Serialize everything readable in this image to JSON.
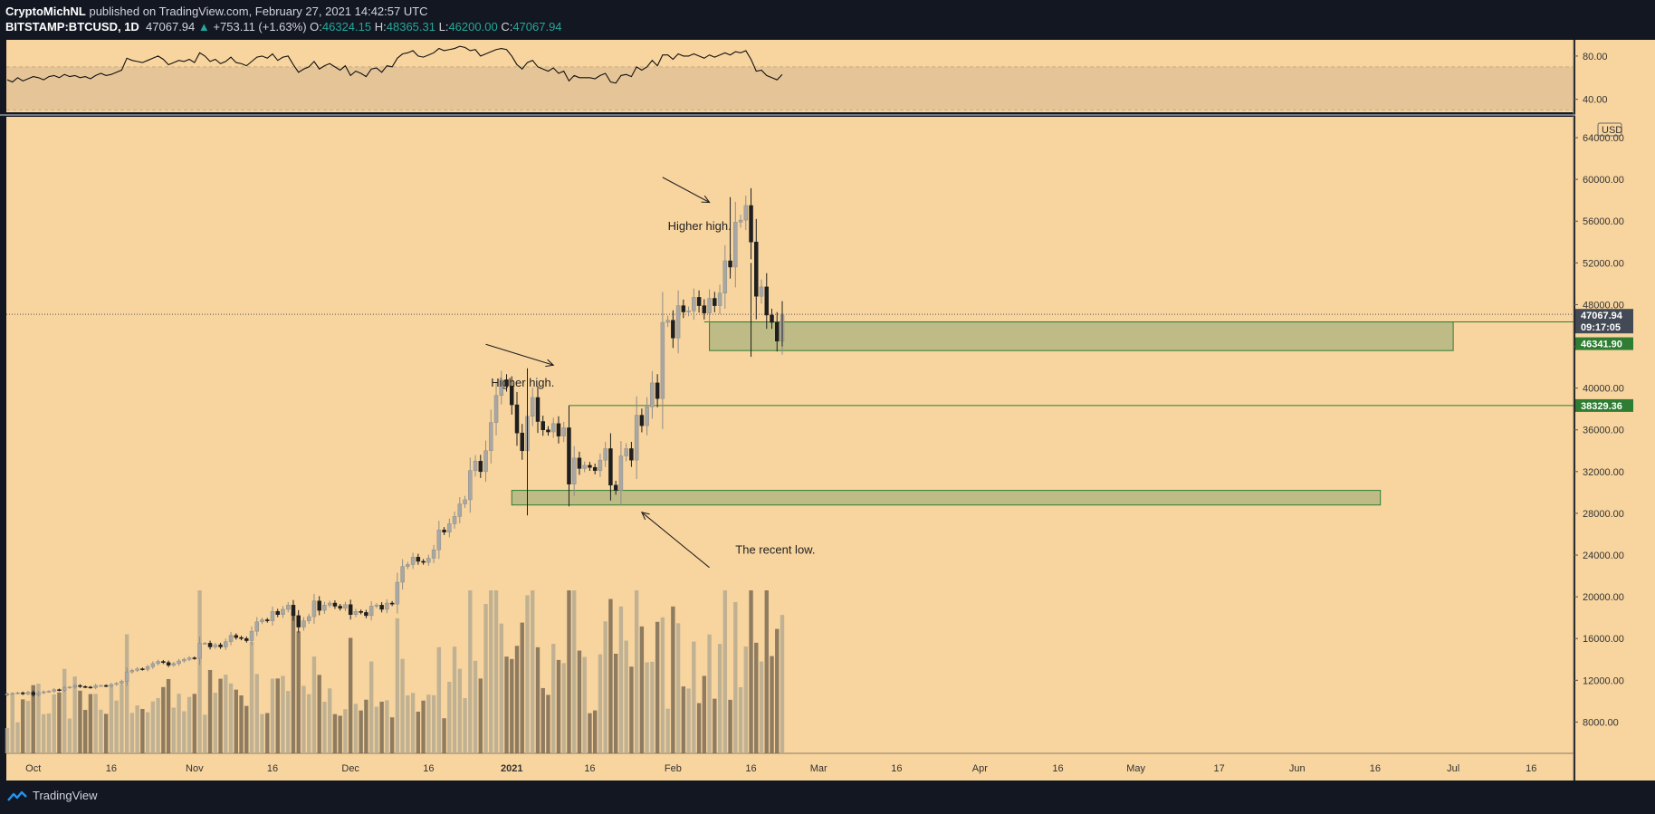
{
  "header": {
    "publisher": "CryptoMichNL",
    "published_text": "published on TradingView.com, February 27, 2021 14:42:57 UTC",
    "symbol": "BITSTAMP:BTCUSD, 1D",
    "last": "47067.94",
    "change": "+753.11 (+1.63%)",
    "o_label": "O:",
    "o_value": "46324.15",
    "h_label": "H:",
    "h_value": "48365.31",
    "l_label": "L:",
    "l_value": "46200.00",
    "c_label": "C:",
    "c_value": "47067.94"
  },
  "footer": {
    "brand": "TradingView"
  },
  "colors": {
    "background": "#131722",
    "pane": "#f8d59f",
    "rsi_band": "#e5c597",
    "candle_up": "#a8a7a3",
    "candle_down": "#1f1f1f",
    "zone_fill": "#bfbb86",
    "zone_border": "#2e7d32",
    "price_label_green": "#2e7d32",
    "price_label_dark": "#444a55"
  },
  "chart_data": {
    "type": "candlestick",
    "symbol": "BITSTAMP:BTCUSD",
    "interval": "1D",
    "currency_label": "USD",
    "y_ticks": [
      "8000.00",
      "12000.00",
      "16000.00",
      "20000.00",
      "24000.00",
      "28000.00",
      "32000.00",
      "36000.00",
      "40000.00",
      "44000.00",
      "48000.00",
      "52000.00",
      "56000.00",
      "60000.00",
      "64000.00"
    ],
    "y_range": [
      5000,
      66000
    ],
    "x_ticks": [
      {
        "label": "Oct",
        "date": "2020-10-01"
      },
      {
        "label": "16",
        "date": "2020-10-16"
      },
      {
        "label": "Nov",
        "date": "2020-11-01"
      },
      {
        "label": "16",
        "date": "2020-11-16"
      },
      {
        "label": "Dec",
        "date": "2020-12-01"
      },
      {
        "label": "16",
        "date": "2020-12-16"
      },
      {
        "label": "2021",
        "date": "2021-01-01"
      },
      {
        "label": "16",
        "date": "2021-01-16"
      },
      {
        "label": "Feb",
        "date": "2021-02-01"
      },
      {
        "label": "16",
        "date": "2021-02-16"
      },
      {
        "label": "Mar",
        "date": "2021-03-01"
      },
      {
        "label": "16",
        "date": "2021-03-16"
      },
      {
        "label": "Apr",
        "date": "2021-04-01"
      },
      {
        "label": "16",
        "date": "2021-04-16"
      },
      {
        "label": "May",
        "date": "2021-05-01"
      },
      {
        "label": "17",
        "date": "2021-05-17"
      },
      {
        "label": "Jun",
        "date": "2021-06-01"
      },
      {
        "label": "16",
        "date": "2021-06-16"
      },
      {
        "label": "Jul",
        "date": "2021-07-01"
      },
      {
        "label": "16",
        "date": "2021-07-16"
      }
    ],
    "x_start": "2020-09-26",
    "closes": [
      10700,
      10750,
      10800,
      10700,
      10850,
      10600,
      10800,
      10900,
      10950,
      11100,
      11050,
      11300,
      11350,
      11500,
      11400,
      11350,
      11300,
      11500,
      11500,
      11450,
      11600,
      11700,
      11900,
      12800,
      12950,
      13100,
      13050,
      13300,
      13600,
      13800,
      13700,
      13450,
      13600,
      13850,
      14000,
      14150,
      14100,
      15550,
      15550,
      15200,
      15400,
      15200,
      15700,
      16300,
      16100,
      16000,
      15800,
      16700,
      17600,
      17800,
      17700,
      18600,
      18300,
      18800,
      19200,
      18200,
      17100,
      17700,
      18100,
      19600,
      18700,
      19200,
      19400,
      19100,
      18900,
      19250,
      18300,
      18600,
      18500,
      18200,
      19100,
      19200,
      18800,
      19400,
      19300,
      21400,
      22900,
      23100,
      23800,
      23400,
      23300,
      23700,
      24500,
      26400,
      26200,
      27000,
      27700,
      28900,
      29300,
      32100,
      33000,
      32000,
      34000,
      36700,
      39300,
      40800,
      40200,
      38400,
      35700,
      34000,
      37300,
      39100,
      36800,
      36000,
      35800,
      36600,
      35400,
      36200,
      30800,
      33300,
      32300,
      32600,
      32400,
      32100,
      33100,
      34200,
      30700,
      30200,
      33500,
      34200,
      33100,
      37400,
      36400,
      38200,
      40500,
      39000,
      46300,
      46500,
      44800,
      47900,
      47300,
      47400,
      48700,
      47900,
      47200,
      48600,
      47900,
      49100,
      52200,
      51600,
      55900,
      56100,
      57500,
      54000,
      48800,
      49700,
      47000,
      46300,
      44500,
      47100
    ],
    "ohlc_sample_last": {
      "date": "2021-02-27",
      "open": 46324.15,
      "high": 48365.31,
      "low": 46200.0,
      "close": 47067.94
    },
    "current_price": 47067.94,
    "countdown": "09:17:05",
    "price_labels": [
      {
        "value": "47067.94",
        "kind": "last"
      },
      {
        "value": "09:17:05",
        "kind": "countdown"
      },
      {
        "value": "46341.90",
        "kind": "level"
      },
      {
        "value": "38329.36",
        "kind": "level"
      }
    ],
    "horizontal_lines": [
      38329.36
    ],
    "zones": [
      {
        "top": 46341.9,
        "bottom": 43600,
        "start": "2021-02-08",
        "end": "2021-07-01"
      },
      {
        "top": 30200,
        "bottom": 28800,
        "start": "2021-01-01",
        "end": "2021-06-17"
      }
    ],
    "annotations": [
      {
        "text": "Higher high.",
        "date": "2020-12-28",
        "price": 40150
      },
      {
        "text": "Higher high.",
        "date": "2021-01-31",
        "price": 55150
      },
      {
        "text": "The recent low.",
        "date": "2021-02-13",
        "price": 24150
      }
    ],
    "arrows": [
      {
        "from": {
          "date": "2020-12-27",
          "price": 44200
        },
        "to": {
          "date": "2021-01-09",
          "price": 42200
        }
      },
      {
        "from": {
          "date": "2021-01-30",
          "price": 60200
        },
        "to": {
          "date": "2021-02-08",
          "price": 57800
        }
      },
      {
        "from": {
          "date": "2021-02-08",
          "price": 22800
        },
        "to": {
          "date": "2021-01-26",
          "price": 28100
        }
      }
    ],
    "rsi": {
      "ticks": [
        "80.00",
        "40.00"
      ],
      "range": [
        28,
        95
      ],
      "band": [
        30,
        70
      ],
      "values": [
        58,
        56,
        60,
        57,
        59,
        61,
        60,
        58,
        61,
        62,
        60,
        63,
        61,
        62,
        60,
        61,
        59,
        62,
        64,
        62,
        63,
        65,
        67,
        78,
        76,
        75,
        74,
        76,
        78,
        80,
        77,
        72,
        74,
        76,
        75,
        77,
        74,
        83,
        80,
        75,
        77,
        73,
        75,
        79,
        74,
        73,
        71,
        75,
        79,
        80,
        78,
        82,
        76,
        79,
        80,
        72,
        65,
        68,
        70,
        75,
        68,
        71,
        73,
        70,
        67,
        71,
        62,
        66,
        64,
        61,
        68,
        69,
        65,
        71,
        70,
        78,
        82,
        83,
        85,
        80,
        79,
        81,
        83,
        87,
        85,
        86,
        87,
        89,
        88,
        85,
        86,
        80,
        82,
        84,
        86,
        87,
        86,
        80,
        72,
        68,
        74,
        76,
        70,
        68,
        66,
        69,
        64,
        66,
        57,
        62,
        60,
        60,
        60,
        59,
        62,
        64,
        56,
        55,
        62,
        63,
        61,
        70,
        67,
        70,
        76,
        71,
        81,
        81,
        77,
        82,
        80,
        80,
        82,
        80,
        78,
        81,
        79,
        81,
        83,
        81,
        84,
        83,
        85,
        77,
        66,
        67,
        62,
        60,
        58,
        63
      ]
    },
    "volume_range": [
      0,
      22000
    ]
  }
}
